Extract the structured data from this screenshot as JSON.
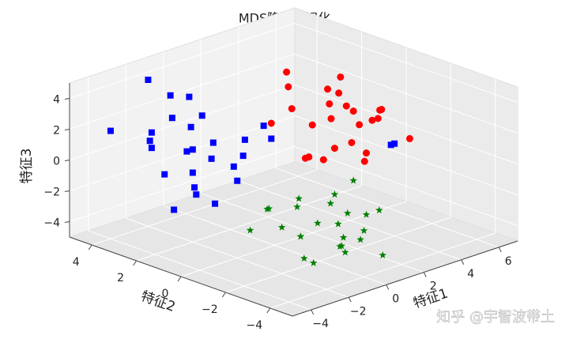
{
  "chart_data": {
    "type": "scatter3d",
    "title": "MDS降维可视化",
    "xlabel": "特征1",
    "ylabel": "特征2",
    "zlabel": "特征3",
    "xlim": [
      -5,
      7
    ],
    "ylim": [
      -5,
      5
    ],
    "zlim": [
      -5,
      5
    ],
    "xticks": [
      {
        "value": -4,
        "label": "−4"
      },
      {
        "value": -2,
        "label": "−2"
      },
      0,
      2,
      4,
      6
    ],
    "yticks": [
      {
        "value": -4,
        "label": "−4"
      },
      {
        "value": -2,
        "label": "−2"
      },
      0,
      2,
      4
    ],
    "zticks": [
      {
        "value": -4,
        "label": "−4"
      },
      {
        "value": -2,
        "label": "−2"
      },
      0,
      2,
      4
    ],
    "grid": true,
    "watermark": "知乎 @宇智波带土",
    "series": [
      {
        "color": "#ff0000",
        "marker": "o",
        "x": [
          3,
          4,
          2,
          3.5,
          5,
          2.5,
          4.5,
          3,
          1.5,
          4,
          3,
          2,
          5,
          3.5,
          4,
          2.5,
          1,
          3,
          4.5,
          5.5,
          2,
          3,
          4,
          3.5,
          6
        ],
        "y": [
          0,
          1,
          -1,
          0.5,
          -0.5,
          1.5,
          0,
          -1.5,
          0.5,
          -1,
          2,
          0,
          1,
          -0.5,
          0.5,
          -2,
          1,
          1,
          -1,
          0,
          -0.5,
          -1,
          2,
          0,
          -1
        ],
        "z": [
          2,
          3,
          1,
          2.5,
          2,
          3.5,
          1,
          0,
          3,
          2,
          4,
          2,
          1.5,
          0.5,
          3,
          1,
          2,
          -1,
          2.5,
          1,
          0,
          3,
          -2,
          4.5,
          0
        ]
      },
      {
        "color": "#0000ff",
        "marker": "s",
        "x": [
          -2,
          -3,
          -1,
          -2.5,
          -1.5,
          -3.5,
          -2,
          -1,
          -3,
          -2,
          -0.5,
          -2.5,
          -4,
          -1.5,
          -2,
          -3,
          -1,
          0,
          -2.5,
          -1.5,
          -3,
          -2,
          1,
          4,
          -2,
          -1,
          -3.5,
          5
        ],
        "y": [
          2,
          3,
          1,
          2.5,
          1.5,
          2,
          3,
          0.5,
          1,
          2,
          1,
          3.5,
          4,
          2,
          1,
          3,
          2,
          0.5,
          1.5,
          2.5,
          2,
          0,
          1,
          -2,
          4,
          3,
          1,
          -1
        ],
        "z": [
          1,
          2,
          0,
          3,
          1.5,
          0,
          4,
          2,
          -1,
          -0.5,
          0.5,
          1,
          2,
          3,
          -2,
          1,
          0,
          2.5,
          -1,
          2,
          -2.5,
          0,
          1,
          1,
          4.5,
          3.5,
          2,
          0
        ]
      },
      {
        "color": "#008000",
        "marker": "*",
        "x": [
          -1,
          0,
          -2,
          1,
          -0.5,
          -1.5,
          0.5,
          2,
          -1,
          0,
          1.5,
          -2,
          -0.5,
          1,
          0,
          -1,
          2.5,
          3,
          -1.5,
          0.5,
          1,
          -2.5,
          2,
          0,
          -1
        ],
        "y": [
          -2,
          -1,
          -3,
          -2,
          -3.5,
          -1,
          -2.5,
          -1,
          -4,
          -3,
          -2,
          -2,
          -1.5,
          -3,
          -4,
          -0.5,
          -2,
          -1,
          -3,
          -1.5,
          -4,
          -1,
          -3,
          -2.5,
          -2
        ],
        "z": [
          -3,
          -2,
          -3.5,
          -3,
          -2.5,
          -1.5,
          -4,
          -2,
          -3,
          -3.5,
          -2.5,
          -2,
          -1,
          -3.5,
          -2,
          -2,
          -3,
          -1.5,
          -4,
          -3,
          -4,
          -2.5,
          -2,
          -1,
          -3
        ]
      }
    ]
  }
}
